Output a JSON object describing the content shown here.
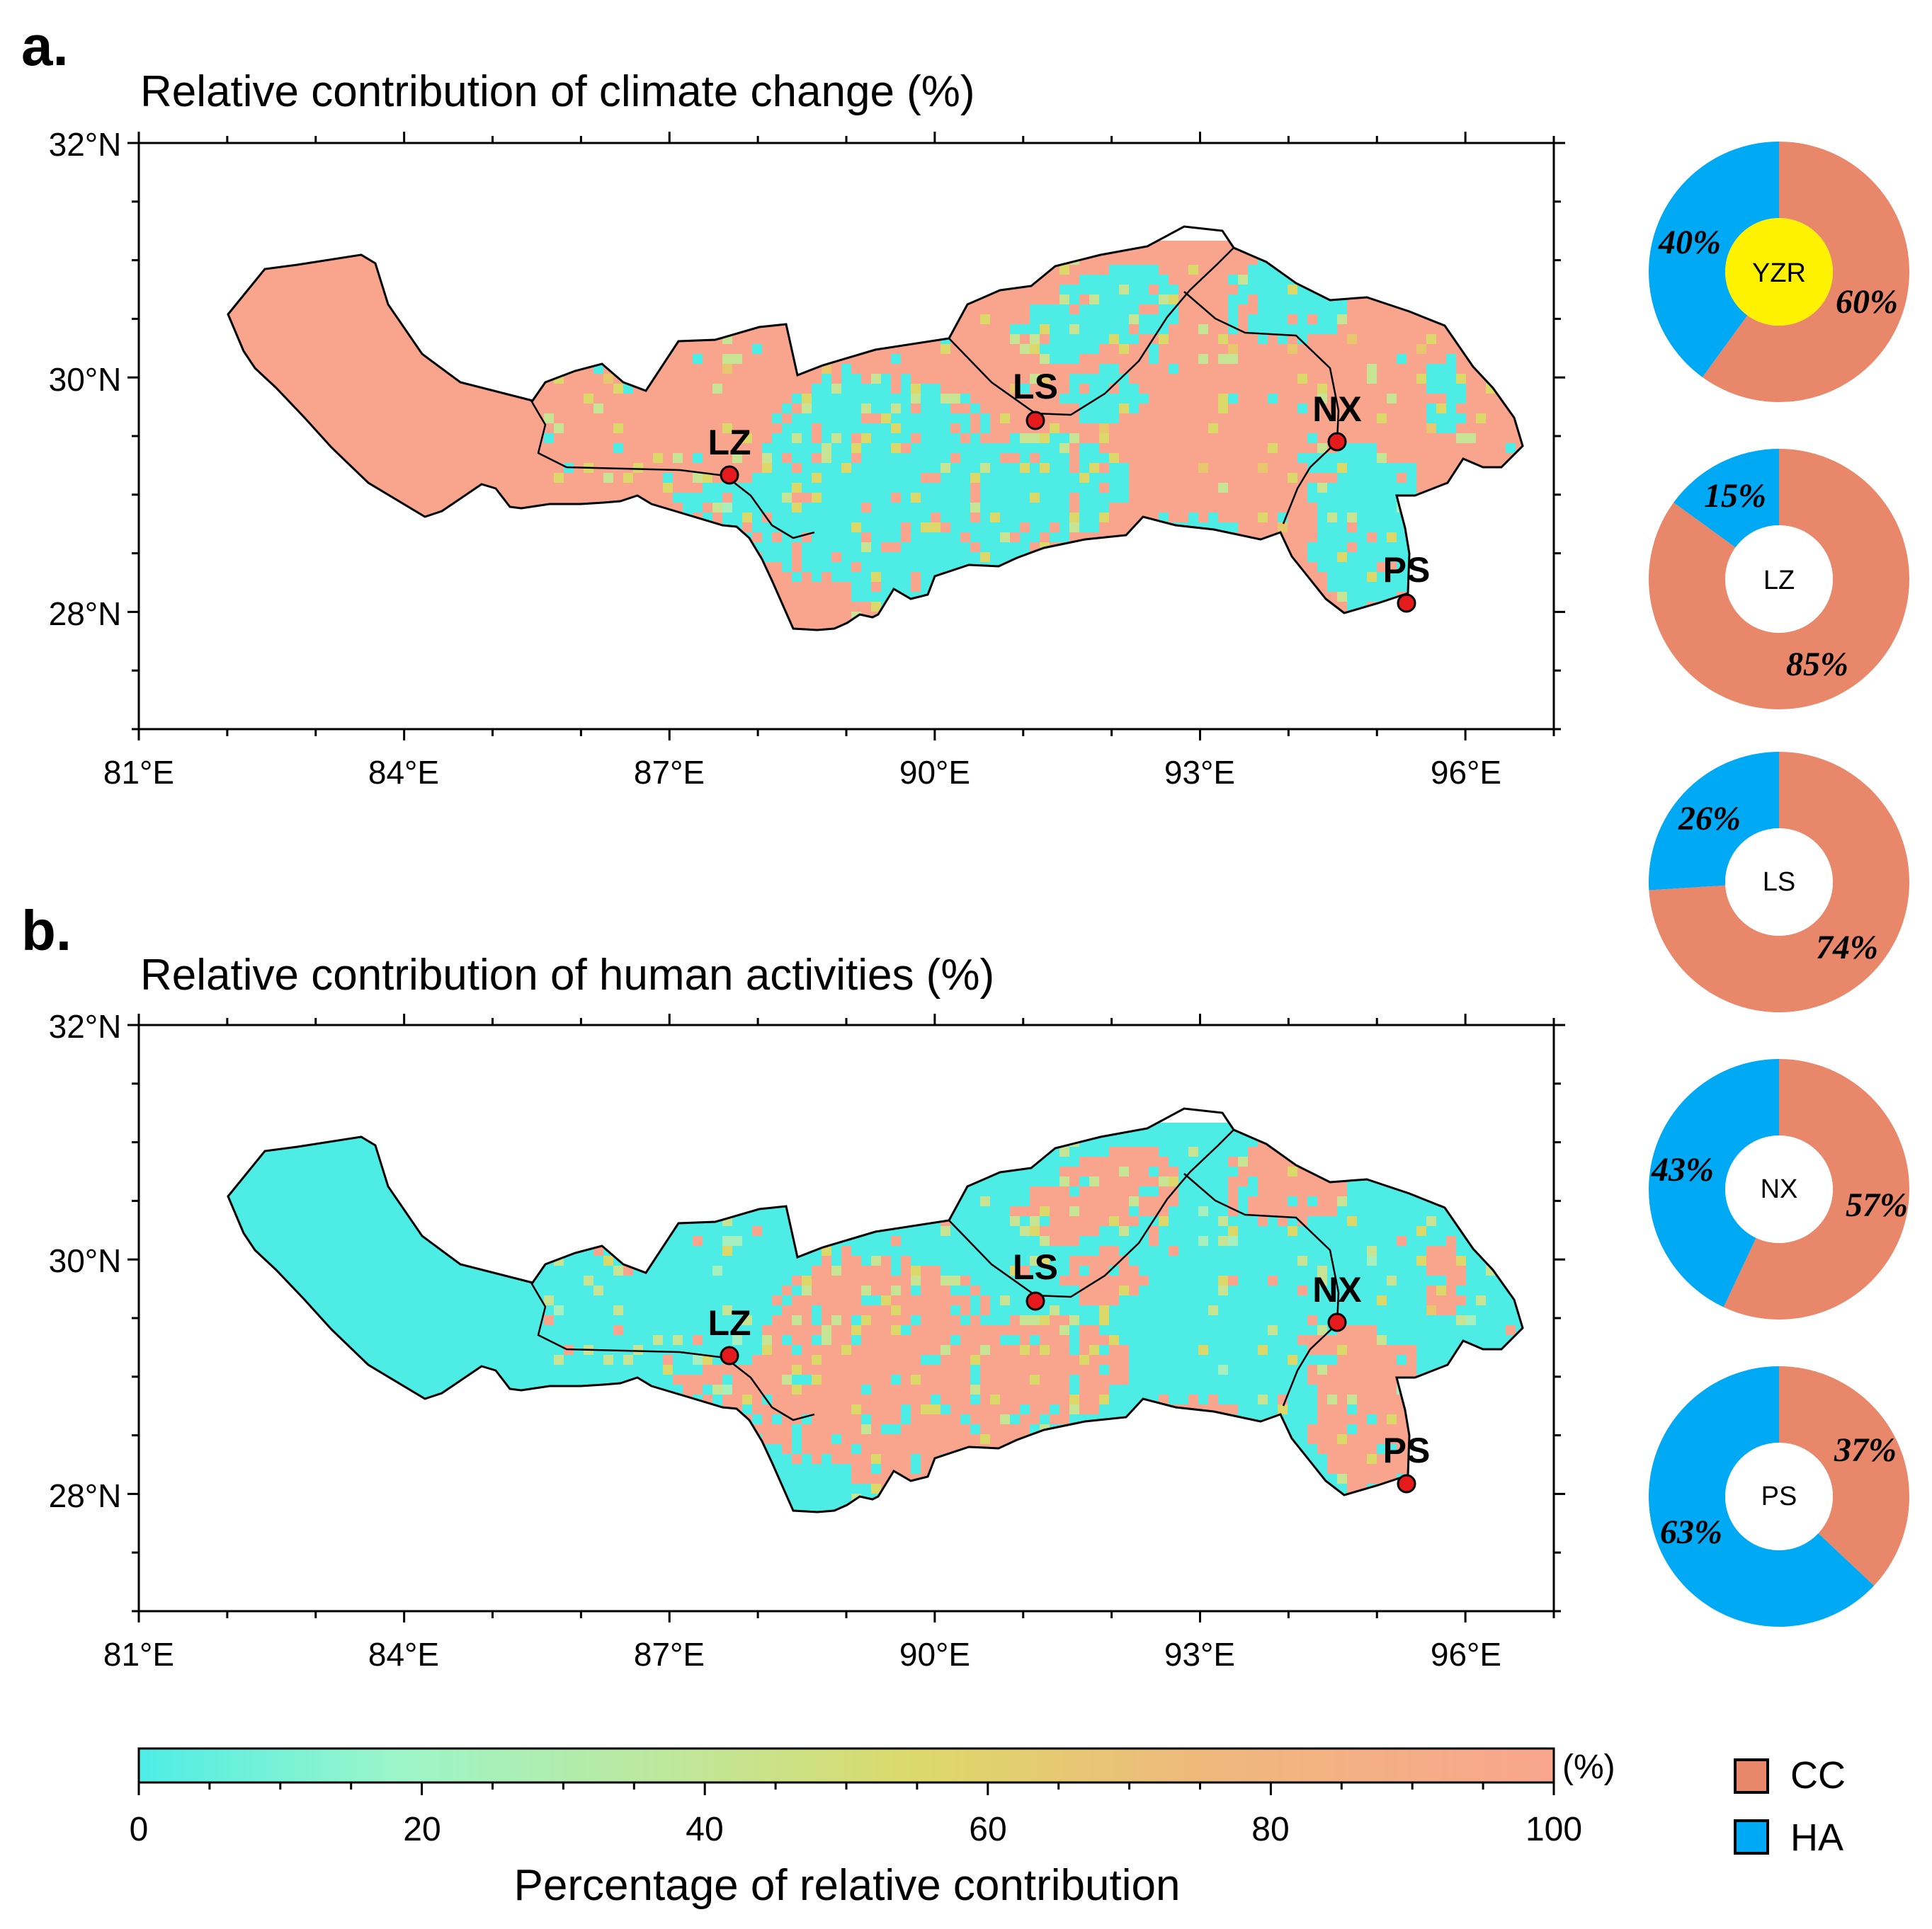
{
  "colors": {
    "cc": "#E8876A",
    "ha": "#00A9F4",
    "scale_low": "#4DEDE6",
    "scale_mid": "#D9D96A",
    "scale_high": "#F9A58E",
    "station": "#E41A1C",
    "yzr_center": "#FFF200"
  },
  "panel_a": {
    "letter": "a.",
    "title": "Relative contribution of climate change (%)",
    "lat_labels": [
      "32°N",
      "30°N",
      "28°N"
    ],
    "lon_labels": [
      "81°E",
      "84°E",
      "87°E",
      "90°E",
      "93°E",
      "96°E"
    ],
    "stations": [
      {
        "id": "LZ",
        "label": "LZ"
      },
      {
        "id": "LS",
        "label": "LS"
      },
      {
        "id": "NX",
        "label": "NX"
      },
      {
        "id": "PS",
        "label": "PS"
      }
    ]
  },
  "panel_b": {
    "letter": "b.",
    "title": "Relative contribution of human activities (%)",
    "lat_labels": [
      "32°N",
      "30°N",
      "28°N"
    ],
    "lon_labels": [
      "81°E",
      "84°E",
      "87°E",
      "90°E",
      "93°E",
      "96°E"
    ],
    "stations": [
      {
        "id": "LZ",
        "label": "LZ"
      },
      {
        "id": "LS",
        "label": "LS"
      },
      {
        "id": "NX",
        "label": "NX"
      },
      {
        "id": "PS",
        "label": "PS"
      }
    ]
  },
  "donuts": [
    {
      "name": "YZR",
      "cc": 60,
      "ha": 40,
      "cc_label": "60%",
      "ha_label": "40%"
    },
    {
      "name": "LZ",
      "cc": 85,
      "ha": 15,
      "cc_label": "85%",
      "ha_label": "15%"
    },
    {
      "name": "LS",
      "cc": 74,
      "ha": 26,
      "cc_label": "74%",
      "ha_label": "26%"
    },
    {
      "name": "NX",
      "cc": 57,
      "ha": 43,
      "cc_label": "57%",
      "ha_label": "43%"
    },
    {
      "name": "PS",
      "cc": 37,
      "ha": 63,
      "cc_label": "37%",
      "ha_label": "63%"
    }
  ],
  "colorbar": {
    "ticks": [
      "0",
      "20",
      "40",
      "60",
      "80",
      "100"
    ],
    "unit": "(%)",
    "label": "Percentage of relative contribution"
  },
  "legend": [
    {
      "key": "cc",
      "label": "CC"
    },
    {
      "key": "ha",
      "label": "HA"
    }
  ]
}
